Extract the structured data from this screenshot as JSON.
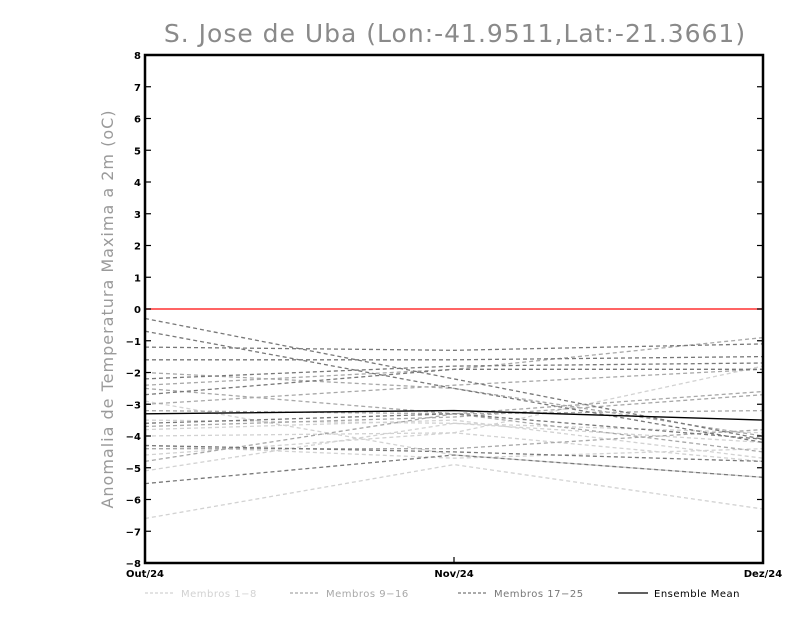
{
  "chart_data": {
    "type": "line",
    "title": "S. Jose de Uba (Lon:-41.9511,Lat:-21.3661)",
    "ylabel": "Anomalia de Temperatura Maxima a 2m (oC)",
    "xlabel": "",
    "categories": [
      "Out/24",
      "Nov/24",
      "Dez/24"
    ],
    "ylim": [
      -8,
      8
    ],
    "yticks": [
      -8,
      -7,
      -6,
      -5,
      -4,
      -3,
      -2,
      -1,
      0,
      1,
      2,
      3,
      4,
      5,
      6,
      7,
      8
    ],
    "reference_line": {
      "value": 0,
      "color": "#ff3030"
    },
    "groups": [
      {
        "legend": "Membros 1-8",
        "color": "#d2d2d2",
        "dash": "4,3",
        "members": [
          [
            -6.6,
            -4.9,
            -6.3
          ],
          [
            -5.1,
            -3.6,
            -4.2
          ],
          [
            -4.0,
            -3.9,
            -1.8
          ],
          [
            -3.8,
            -3.5,
            -4.7
          ],
          [
            -2.9,
            -4.6,
            -5.3
          ],
          [
            -4.3,
            -4.7,
            -4.4
          ],
          [
            -3.5,
            -3.6,
            -3.9
          ],
          [
            -4.6,
            -3.9,
            -4.8
          ]
        ]
      },
      {
        "legend": "Membros 9-16",
        "color": "#a8a8a8",
        "dash": "4,3",
        "members": [
          [
            -3.7,
            -3.4,
            -2.7
          ],
          [
            -2.5,
            -3.3,
            -3.2
          ],
          [
            -2.0,
            -2.5,
            -4.0
          ],
          [
            -4.4,
            -4.4,
            -3.8
          ],
          [
            -3.0,
            -2.4,
            -1.9
          ],
          [
            -4.8,
            -3.3,
            -2.6
          ],
          [
            -3.2,
            -3.3,
            -4.5
          ],
          [
            -2.4,
            -1.9,
            -0.9
          ]
        ]
      },
      {
        "legend": "Membros 17-25",
        "color": "#787878",
        "dash": "4,3",
        "members": [
          [
            -0.3,
            -2.2,
            -4.1
          ],
          [
            -0.7,
            -2.5,
            -4.2
          ],
          [
            -1.2,
            -1.3,
            -1.1
          ],
          [
            -1.6,
            -1.6,
            -1.5
          ],
          [
            -2.2,
            -1.8,
            -1.7
          ],
          [
            -2.7,
            -1.9,
            -1.9
          ],
          [
            -3.6,
            -3.3,
            -4.1
          ],
          [
            -4.3,
            -4.5,
            -4.8
          ],
          [
            -5.5,
            -4.6,
            -5.3
          ]
        ]
      }
    ],
    "ensemble_mean": {
      "legend": "Ensemble Mean",
      "color": "#000000",
      "values": [
        -3.3,
        -3.2,
        -3.5
      ]
    }
  }
}
